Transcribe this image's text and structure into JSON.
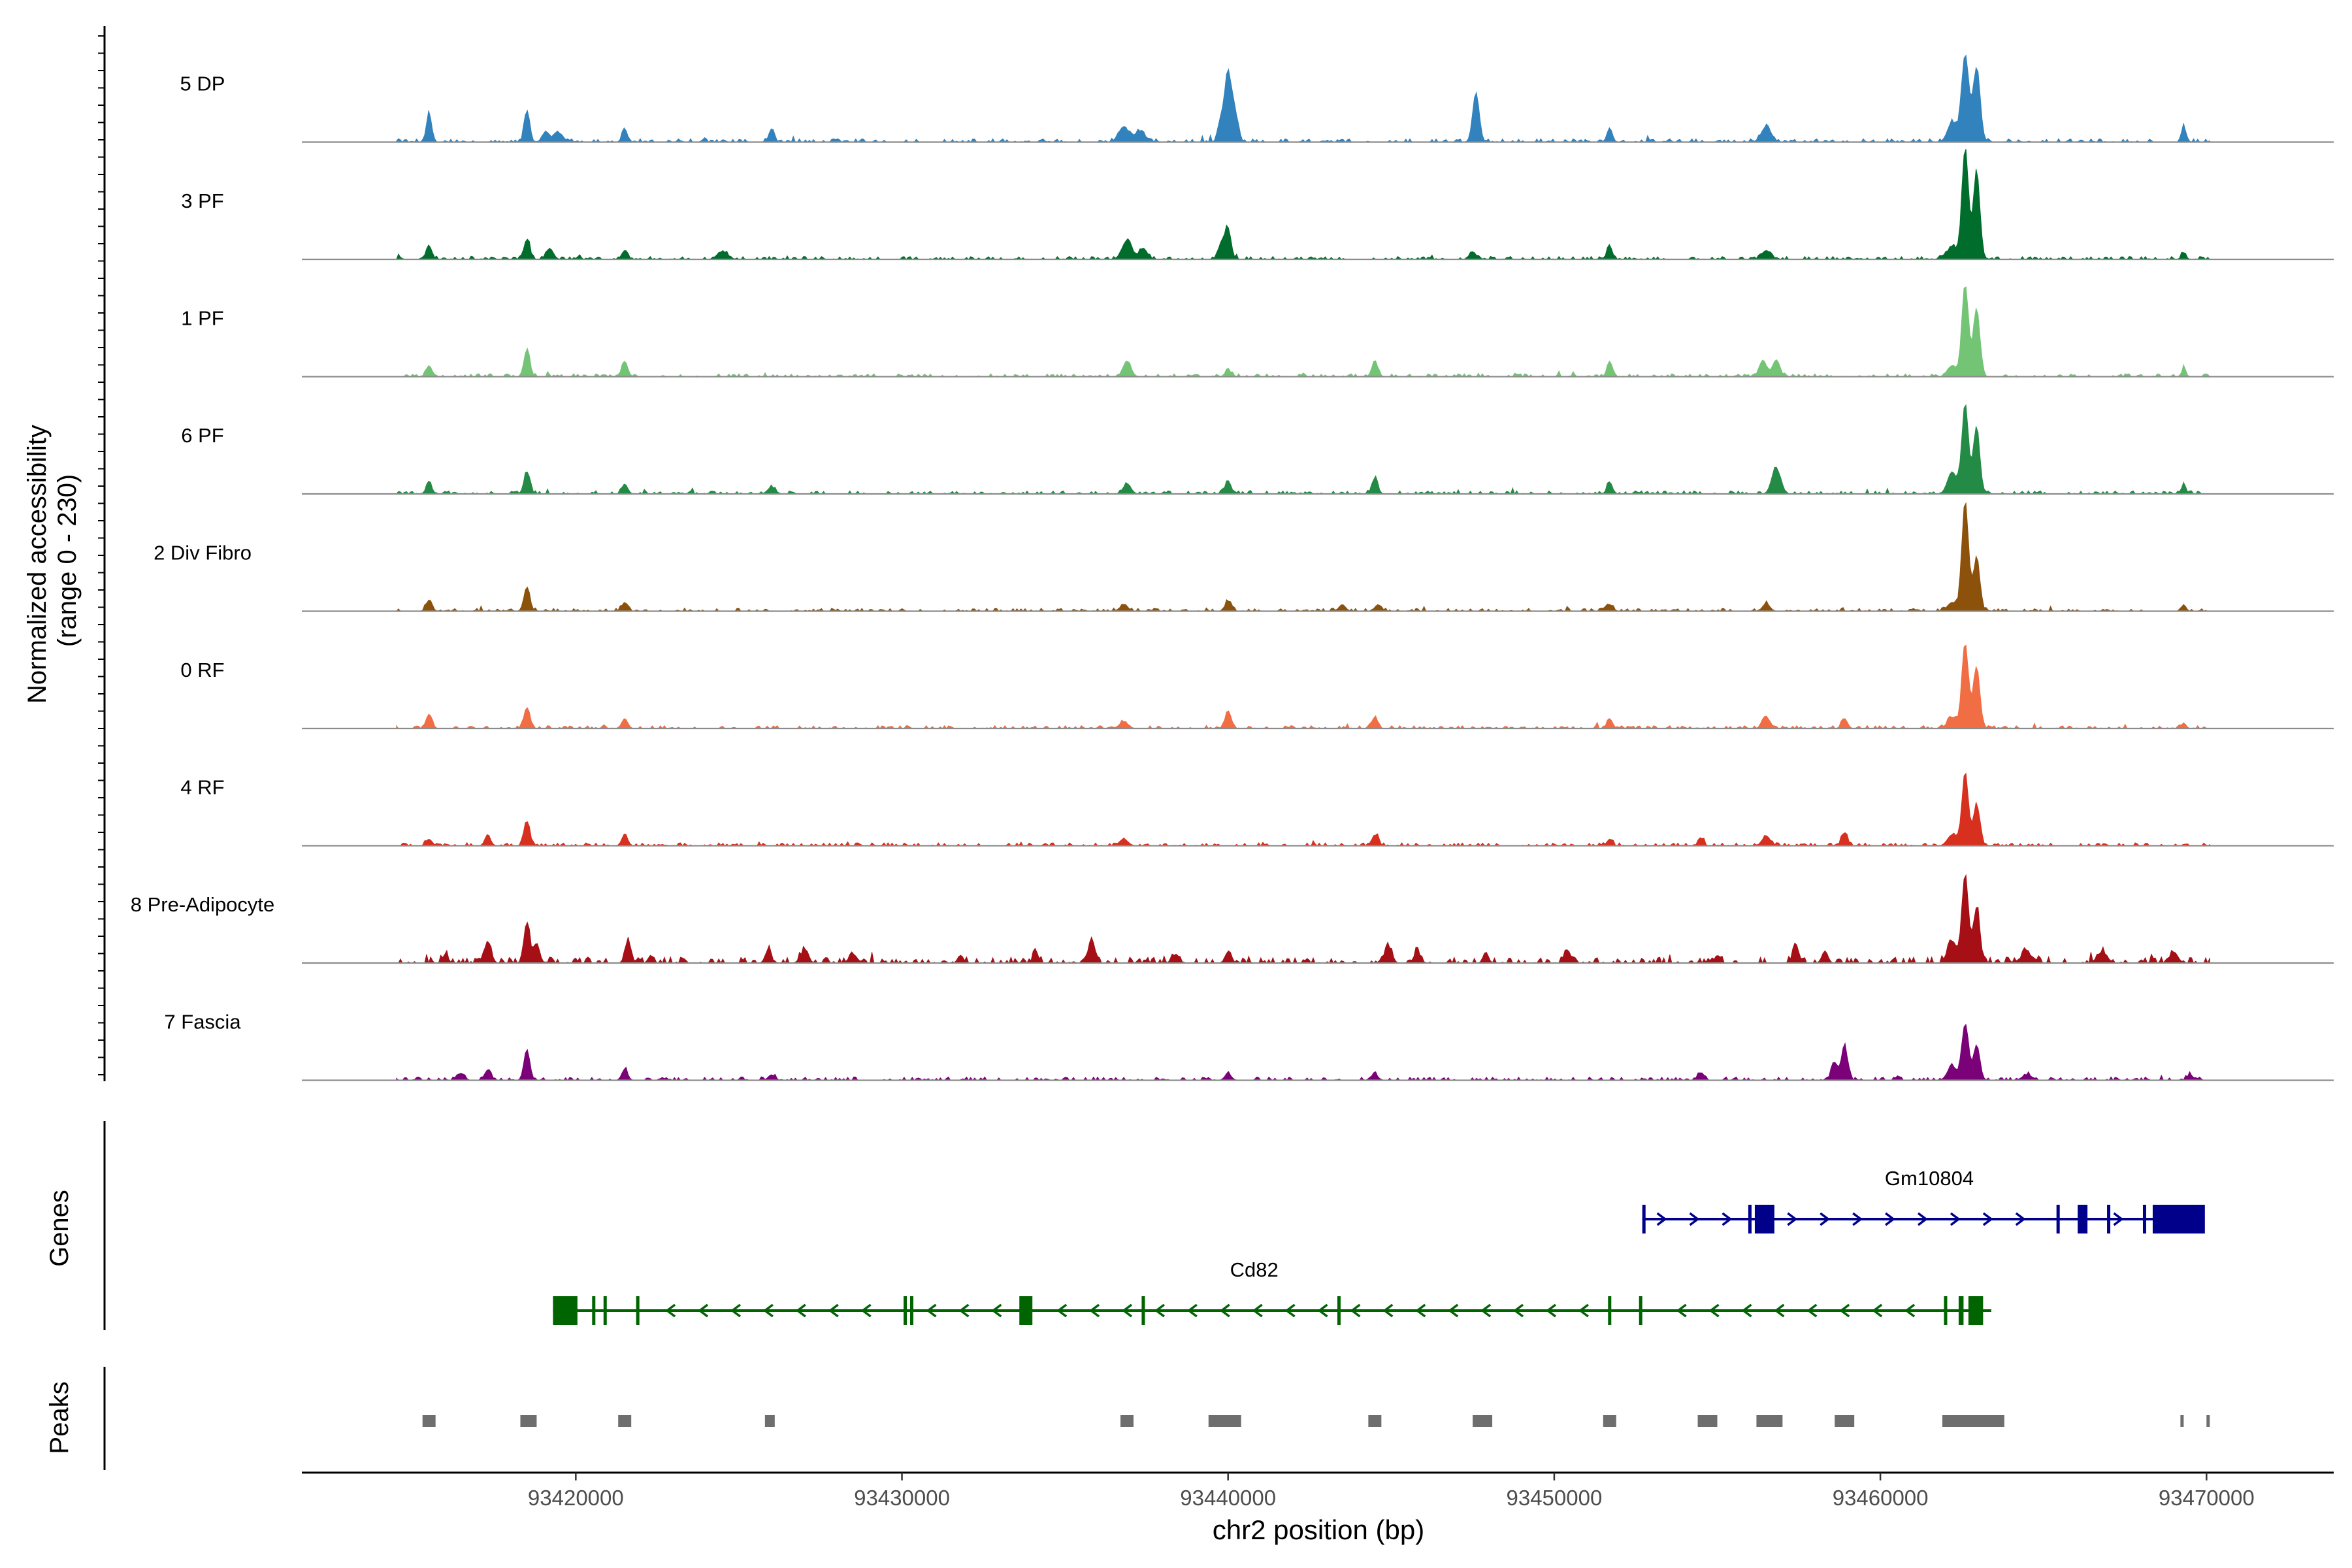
{
  "chart_data": {
    "type": "area",
    "title": "",
    "xlabel": "chr2 position (bp)",
    "ylabel": "Normalized accessibility\n(range 0 - 230)",
    "ylabel_lines": [
      "Normalized accessibility",
      "(range 0 - 230)"
    ],
    "x_range": [
      93411600,
      93473900
    ],
    "y_range": [
      0,
      230
    ],
    "region": {
      "start": 93414500,
      "end": 93470100
    },
    "x_ticks": [
      93420000,
      93430000,
      93440000,
      93450000,
      93460000,
      93470000
    ],
    "x_tick_labels": [
      "93420000",
      "93430000",
      "93440000",
      "93450000",
      "93460000",
      "93470000"
    ],
    "panel_labels": {
      "genes": "Genes",
      "peaks": "Peaks"
    },
    "tracks": [
      {
        "name": "5 DP",
        "color": "#3182bd",
        "peaks": [
          [
            93415500,
            0.26,
            80
          ],
          [
            93418500,
            0.29,
            80
          ],
          [
            93419100,
            0.09,
            120
          ],
          [
            93419500,
            0.08,
            120
          ],
          [
            93421500,
            0.12,
            80
          ],
          [
            93426000,
            0.12,
            80
          ],
          [
            93436800,
            0.14,
            150
          ],
          [
            93437300,
            0.1,
            150
          ],
          [
            93439800,
            0.23,
            90
          ],
          [
            93440000,
            0.6,
            90
          ],
          [
            93440200,
            0.28,
            100
          ],
          [
            93447600,
            0.45,
            100
          ],
          [
            93451700,
            0.13,
            80
          ],
          [
            93456500,
            0.14,
            150
          ],
          [
            93462200,
            0.18,
            140
          ],
          [
            93462600,
            0.79,
            110
          ],
          [
            93462950,
            0.67,
            110
          ],
          [
            93469300,
            0.14,
            70
          ]
        ],
        "noise": 0.014
      },
      {
        "name": "3 PF",
        "color": "#006d2c",
        "peaks": [
          [
            93415500,
            0.12,
            90
          ],
          [
            93418500,
            0.18,
            90
          ],
          [
            93419200,
            0.1,
            110
          ],
          [
            93421500,
            0.08,
            90
          ],
          [
            93424500,
            0.07,
            160
          ],
          [
            93436900,
            0.17,
            150
          ],
          [
            93437400,
            0.1,
            120
          ],
          [
            93439800,
            0.15,
            100
          ],
          [
            93440000,
            0.27,
            90
          ],
          [
            93447500,
            0.07,
            100
          ],
          [
            93451700,
            0.12,
            80
          ],
          [
            93456500,
            0.08,
            140
          ],
          [
            93462200,
            0.12,
            140
          ],
          [
            93462600,
            1.0,
            100
          ],
          [
            93462950,
            0.8,
            100
          ],
          [
            93469300,
            0.06,
            70
          ]
        ],
        "noise": 0.012
      },
      {
        "name": "1 PF",
        "color": "#74c476",
        "peaks": [
          [
            93415500,
            0.1,
            90
          ],
          [
            93418500,
            0.24,
            90
          ],
          [
            93421500,
            0.14,
            90
          ],
          [
            93436900,
            0.14,
            120
          ],
          [
            93440000,
            0.06,
            90
          ],
          [
            93444500,
            0.14,
            90
          ],
          [
            93451700,
            0.14,
            80
          ],
          [
            93456400,
            0.15,
            110
          ],
          [
            93456800,
            0.15,
            110
          ],
          [
            93462200,
            0.1,
            140
          ],
          [
            93462600,
            0.83,
            100
          ],
          [
            93462950,
            0.62,
            100
          ],
          [
            93469300,
            0.06,
            70
          ]
        ],
        "noise": 0.012
      },
      {
        "name": "6 PF",
        "color": "#238b45",
        "peaks": [
          [
            93415500,
            0.09,
            90
          ],
          [
            93418500,
            0.2,
            90
          ],
          [
            93421500,
            0.09,
            90
          ],
          [
            93426000,
            0.06,
            120
          ],
          [
            93436900,
            0.09,
            120
          ],
          [
            93440000,
            0.12,
            90
          ],
          [
            93444500,
            0.14,
            90
          ],
          [
            93451700,
            0.11,
            80
          ],
          [
            93456800,
            0.24,
            130
          ],
          [
            93462200,
            0.2,
            140
          ],
          [
            93462600,
            0.82,
            100
          ],
          [
            93462950,
            0.59,
            100
          ],
          [
            93469300,
            0.08,
            70
          ]
        ],
        "noise": 0.013
      },
      {
        "name": "2 Div Fibro",
        "color": "#8c510a",
        "peaks": [
          [
            93415500,
            0.1,
            90
          ],
          [
            93418500,
            0.22,
            90
          ],
          [
            93421500,
            0.08,
            90
          ],
          [
            93436800,
            0.05,
            130
          ],
          [
            93440000,
            0.09,
            90
          ],
          [
            93443500,
            0.06,
            100
          ],
          [
            93444600,
            0.06,
            100
          ],
          [
            93451700,
            0.06,
            100
          ],
          [
            93456500,
            0.07,
            110
          ],
          [
            93462200,
            0.08,
            140
          ],
          [
            93462600,
            1.0,
            100
          ],
          [
            93462950,
            0.48,
            100
          ],
          [
            93469300,
            0.06,
            70
          ]
        ],
        "noise": 0.012
      },
      {
        "name": "0 RF",
        "color": "#f16d43",
        "peaks": [
          [
            93415500,
            0.13,
            90
          ],
          [
            93418500,
            0.19,
            90
          ],
          [
            93421500,
            0.09,
            90
          ],
          [
            93436800,
            0.06,
            130
          ],
          [
            93440000,
            0.16,
            90
          ],
          [
            93444500,
            0.1,
            90
          ],
          [
            93451700,
            0.09,
            80
          ],
          [
            93456500,
            0.1,
            120
          ],
          [
            93458900,
            0.09,
            90
          ],
          [
            93462200,
            0.1,
            140
          ],
          [
            93462600,
            0.77,
            100
          ],
          [
            93462950,
            0.56,
            100
          ],
          [
            93469300,
            0.05,
            70
          ]
        ],
        "noise": 0.012
      },
      {
        "name": "4 RF",
        "color": "#d7301f",
        "peaks": [
          [
            93415500,
            0.06,
            90
          ],
          [
            93417300,
            0.09,
            90
          ],
          [
            93418500,
            0.22,
            90
          ],
          [
            93421500,
            0.1,
            90
          ],
          [
            93436800,
            0.06,
            130
          ],
          [
            93444500,
            0.1,
            90
          ],
          [
            93451700,
            0.06,
            80
          ],
          [
            93454500,
            0.07,
            80
          ],
          [
            93456500,
            0.09,
            120
          ],
          [
            93458900,
            0.12,
            90
          ],
          [
            93462200,
            0.1,
            140
          ],
          [
            93462600,
            0.65,
            100
          ],
          [
            93462950,
            0.37,
            100
          ]
        ],
        "noise": 0.012
      },
      {
        "name": "8 Pre-Adipocyte",
        "color": "#a50f15",
        "peaks": [
          [
            93416000,
            0.08,
            80
          ],
          [
            93417300,
            0.2,
            90
          ],
          [
            93418500,
            0.37,
            90
          ],
          [
            93418800,
            0.18,
            90
          ],
          [
            93421600,
            0.2,
            90
          ],
          [
            93422300,
            0.07,
            80
          ],
          [
            93425900,
            0.12,
            90
          ],
          [
            93427000,
            0.1,
            120
          ],
          [
            93428500,
            0.08,
            120
          ],
          [
            93431800,
            0.07,
            80
          ],
          [
            93434100,
            0.1,
            80
          ],
          [
            93435800,
            0.21,
            90
          ],
          [
            93438400,
            0.08,
            100
          ],
          [
            93440000,
            0.07,
            100
          ],
          [
            93444900,
            0.16,
            100
          ],
          [
            93445800,
            0.1,
            100
          ],
          [
            93447900,
            0.1,
            80
          ],
          [
            93450400,
            0.12,
            100
          ],
          [
            93455000,
            0.07,
            80
          ],
          [
            93457400,
            0.15,
            90
          ],
          [
            93458300,
            0.11,
            90
          ],
          [
            93462200,
            0.2,
            140
          ],
          [
            93462600,
            0.8,
            100
          ],
          [
            93462950,
            0.5,
            100
          ],
          [
            93464500,
            0.08,
            200
          ],
          [
            93466800,
            0.1,
            150
          ],
          [
            93469000,
            0.1,
            120
          ]
        ],
        "noise": 0.025
      },
      {
        "name": "7 Fascia",
        "color": "#7a0177",
        "peaks": [
          [
            93416500,
            0.06,
            100
          ],
          [
            93417300,
            0.09,
            100
          ],
          [
            93418500,
            0.28,
            90
          ],
          [
            93421500,
            0.1,
            90
          ],
          [
            93426000,
            0.05,
            100
          ],
          [
            93440000,
            0.06,
            100
          ],
          [
            93444500,
            0.05,
            100
          ],
          [
            93454500,
            0.07,
            100
          ],
          [
            93458600,
            0.16,
            100
          ],
          [
            93458900,
            0.32,
            90
          ],
          [
            93462200,
            0.13,
            140
          ],
          [
            93462600,
            0.51,
            100
          ],
          [
            93462950,
            0.32,
            100
          ],
          [
            93464500,
            0.05,
            150
          ],
          [
            93469500,
            0.05,
            90
          ]
        ],
        "noise": 0.014
      }
    ],
    "genes": [
      {
        "name": "Gm10804",
        "strand": "+",
        "color": "#00008b",
        "line": [
          93452700,
          93469900
        ],
        "exons": [
          [
            93452700,
            93452800
          ],
          [
            93455950,
            93456050
          ],
          [
            93456150,
            93456750
          ],
          [
            93465400,
            93465500
          ],
          [
            93466050,
            93466350
          ],
          [
            93466950,
            93467050
          ],
          [
            93468050,
            93468150
          ],
          [
            93468350,
            93469950
          ]
        ],
        "label_x": 93461500
      },
      {
        "name": "Cd82",
        "strand": "-",
        "color": "#006400",
        "line": [
          93419300,
          93463400
        ],
        "exons": [
          [
            93419300,
            93420050
          ],
          [
            93420500,
            93420600
          ],
          [
            93420850,
            93420950
          ],
          [
            93421850,
            93421950
          ],
          [
            93430050,
            93430150
          ],
          [
            93430250,
            93430350
          ],
          [
            93433600,
            93434000
          ],
          [
            93437350,
            93437450
          ],
          [
            93443350,
            93443450
          ],
          [
            93451650,
            93451750
          ],
          [
            93452600,
            93452700
          ],
          [
            93461950,
            93462050
          ],
          [
            93462400,
            93462550
          ],
          [
            93462700,
            93463150
          ]
        ],
        "label_x": 93440800
      }
    ],
    "peaks_track": [
      [
        93415300,
        93415700
      ],
      [
        93418300,
        93418800
      ],
      [
        93421300,
        93421700
      ],
      [
        93425800,
        93426100
      ],
      [
        93436700,
        93437100
      ],
      [
        93439400,
        93440400
      ],
      [
        93444300,
        93444700
      ],
      [
        93447500,
        93448100
      ],
      [
        93451500,
        93451900
      ],
      [
        93454400,
        93455000
      ],
      [
        93456200,
        93457000
      ],
      [
        93458600,
        93459200
      ],
      [
        93461900,
        93463800
      ],
      [
        93469200,
        93469300
      ],
      [
        93470000,
        93470100
      ]
    ]
  }
}
